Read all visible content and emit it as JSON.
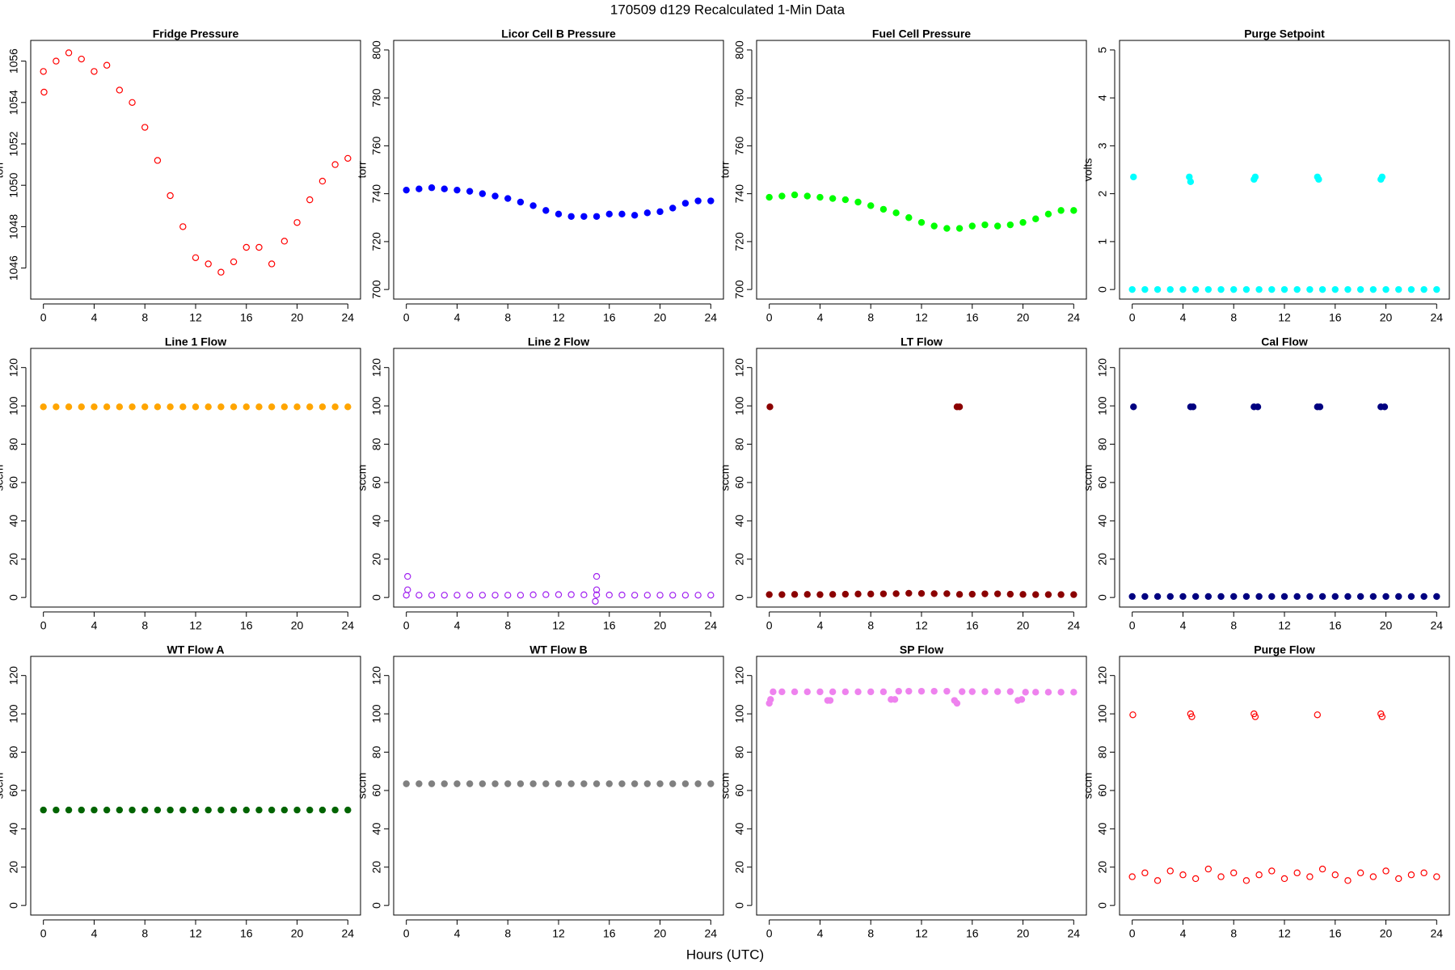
{
  "page_title": "170509   d129   Recalculated 1-Min Data",
  "x_label": "Hours (UTC)",
  "chart_data": [
    {
      "type": "scatter",
      "title": "Fridge Pressure",
      "ylabel": "torr",
      "color": "#ff0000",
      "marker": "open",
      "xlim": [
        -1,
        25
      ],
      "xticks": [
        0,
        4,
        8,
        12,
        16,
        20,
        24
      ],
      "ylim": [
        1044.5,
        1057
      ],
      "yticks": [
        1046,
        1048,
        1050,
        1052,
        1054,
        1056
      ],
      "x": [
        0,
        0.05,
        1,
        2,
        3,
        4,
        5,
        6,
        7,
        8,
        9,
        10,
        11,
        12,
        13,
        14,
        15,
        16,
        17,
        18,
        19,
        20,
        21,
        22,
        23,
        24
      ],
      "values": [
        1055.5,
        1054.5,
        1056.0,
        1056.4,
        1056.1,
        1055.5,
        1055.8,
        1054.6,
        1054.0,
        1052.8,
        1051.2,
        1049.5,
        1048.0,
        1046.5,
        1046.2,
        1045.8,
        1046.3,
        1047.0,
        1047.0,
        1046.2,
        1047.3,
        1048.2,
        1049.3,
        1050.2,
        1051.0,
        1051.3
      ]
    },
    {
      "type": "scatter",
      "title": "Licor Cell B Pressure",
      "ylabel": "torr",
      "color": "#0000ff",
      "marker": "filled",
      "xlim": [
        -1,
        25
      ],
      "xticks": [
        0,
        4,
        8,
        12,
        16,
        20,
        24
      ],
      "ylim": [
        696,
        804
      ],
      "yticks": [
        700,
        720,
        740,
        760,
        780,
        800
      ],
      "x": [
        0,
        1,
        2,
        3,
        4,
        5,
        6,
        7,
        8,
        9,
        10,
        11,
        12,
        13,
        14,
        15,
        16,
        17,
        18,
        19,
        20,
        21,
        22,
        23,
        24
      ],
      "values": [
        741.5,
        742,
        742.5,
        742,
        741.5,
        741,
        740,
        739,
        738,
        736.5,
        735,
        733,
        731.5,
        730.5,
        730.5,
        730.5,
        731.5,
        731.5,
        731,
        732,
        732.5,
        734,
        736,
        737,
        737
      ]
    },
    {
      "type": "scatter",
      "title": "Fuel Cell Pressure",
      "ylabel": "torr",
      "color": "#00ff00",
      "marker": "filled",
      "xlim": [
        -1,
        25
      ],
      "xticks": [
        0,
        4,
        8,
        12,
        16,
        20,
        24
      ],
      "ylim": [
        696,
        804
      ],
      "yticks": [
        700,
        720,
        740,
        760,
        780,
        800
      ],
      "x": [
        0,
        1,
        2,
        3,
        4,
        5,
        6,
        7,
        8,
        9,
        10,
        11,
        12,
        13,
        14,
        15,
        16,
        17,
        18,
        19,
        20,
        21,
        22,
        23,
        24
      ],
      "values": [
        738.5,
        739,
        739.5,
        739,
        738.5,
        738,
        737.5,
        736.5,
        735,
        733.5,
        732,
        730,
        728,
        726.5,
        725.5,
        725.5,
        726.5,
        727,
        726.5,
        727,
        728,
        729.5,
        731.5,
        733,
        733
      ]
    },
    {
      "type": "scatter",
      "title": "Purge Setpoint",
      "ylabel": "volts",
      "color": "#00ffff",
      "marker": "filled",
      "xlim": [
        -1,
        25
      ],
      "xticks": [
        0,
        4,
        8,
        12,
        16,
        20,
        24
      ],
      "ylim": [
        -0.2,
        5.2
      ],
      "yticks": [
        0,
        1,
        2,
        3,
        4,
        5
      ],
      "x": [
        0,
        1,
        2,
        3,
        4,
        5,
        6,
        7,
        8,
        9,
        10,
        11,
        12,
        13,
        14,
        15,
        16,
        17,
        18,
        19,
        20,
        21,
        22,
        23,
        24,
        0.1,
        4.5,
        4.6,
        9.6,
        9.7,
        14.6,
        14.7,
        19.6,
        19.7
      ],
      "values": [
        0,
        0,
        0,
        0,
        0,
        0,
        0,
        0,
        0,
        0,
        0,
        0,
        0,
        0,
        0,
        0,
        0,
        0,
        0,
        0,
        0,
        0,
        0,
        0,
        0,
        2.35,
        2.35,
        2.25,
        2.3,
        2.35,
        2.35,
        2.3,
        2.3,
        2.35
      ]
    },
    {
      "type": "scatter",
      "title": "Line 1 Flow",
      "ylabel": "sccm",
      "color": "#ffa500",
      "marker": "filled",
      "xlim": [
        -1,
        25
      ],
      "xticks": [
        0,
        4,
        8,
        12,
        16,
        20,
        24
      ],
      "ylim": [
        -5,
        130
      ],
      "yticks": [
        0,
        20,
        40,
        60,
        80,
        100,
        120
      ],
      "x": [
        0,
        1,
        2,
        3,
        4,
        5,
        6,
        7,
        8,
        9,
        10,
        11,
        12,
        13,
        14,
        15,
        16,
        17,
        18,
        19,
        20,
        21,
        22,
        23,
        24
      ],
      "values": [
        99.5,
        99.5,
        99.5,
        99.5,
        99.5,
        99.5,
        99.5,
        99.5,
        99.5,
        99.5,
        99.5,
        99.5,
        99.5,
        99.5,
        99.5,
        99.5,
        99.5,
        99.5,
        99.5,
        99.5,
        99.5,
        99.5,
        99.5,
        99.5,
        99.5
      ]
    },
    {
      "type": "scatter",
      "title": "Line 2 Flow",
      "ylabel": "sccm",
      "color": "#a020f0",
      "marker": "open",
      "xlim": [
        -1,
        25
      ],
      "xticks": [
        0,
        4,
        8,
        12,
        16,
        20,
        24
      ],
      "ylim": [
        -5,
        130
      ],
      "yticks": [
        0,
        20,
        40,
        60,
        80,
        100,
        120
      ],
      "x": [
        0,
        1,
        2,
        3,
        4,
        5,
        6,
        7,
        8,
        9,
        10,
        11,
        12,
        13,
        14,
        15,
        16,
        17,
        18,
        19,
        20,
        21,
        22,
        23,
        24,
        0.1,
        0.1,
        15,
        15,
        14.9
      ],
      "values": [
        1.2,
        1.2,
        1.2,
        1.2,
        1.2,
        1.2,
        1.2,
        1.2,
        1.2,
        1.2,
        1.4,
        1.5,
        1.5,
        1.5,
        1.4,
        1.4,
        1.3,
        1.3,
        1.2,
        1.2,
        1.2,
        1.2,
        1.2,
        1.2,
        1.2,
        11,
        4,
        11,
        4,
        -2
      ]
    },
    {
      "type": "scatter",
      "title": "LT Flow",
      "ylabel": "sccm",
      "color": "#8b0000",
      "marker": "filled",
      "xlim": [
        -1,
        25
      ],
      "xticks": [
        0,
        4,
        8,
        12,
        16,
        20,
        24
      ],
      "ylim": [
        -5,
        130
      ],
      "yticks": [
        0,
        20,
        40,
        60,
        80,
        100,
        120
      ],
      "x": [
        0,
        1,
        2,
        3,
        4,
        5,
        6,
        7,
        8,
        9,
        10,
        11,
        12,
        13,
        14,
        15,
        16,
        17,
        18,
        19,
        20,
        21,
        22,
        23,
        24,
        0.05,
        14.8,
        15
      ],
      "values": [
        1.5,
        1.5,
        1.6,
        1.6,
        1.5,
        1.6,
        1.7,
        1.8,
        1.8,
        1.9,
        2.0,
        2.2,
        2.1,
        2.0,
        2.0,
        1.6,
        1.7,
        1.9,
        1.9,
        1.7,
        1.6,
        1.5,
        1.5,
        1.5,
        1.5,
        99.5,
        99.5,
        99.5
      ]
    },
    {
      "type": "scatter",
      "title": "Cal Flow",
      "ylabel": "sccm",
      "color": "#000080",
      "marker": "filled",
      "xlim": [
        -1,
        25
      ],
      "xticks": [
        0,
        4,
        8,
        12,
        16,
        20,
        24
      ],
      "ylim": [
        -5,
        130
      ],
      "yticks": [
        0,
        20,
        40,
        60,
        80,
        100,
        120
      ],
      "x": [
        0,
        1,
        2,
        3,
        4,
        5,
        6,
        7,
        8,
        9,
        10,
        11,
        12,
        13,
        14,
        15,
        16,
        17,
        18,
        19,
        20,
        21,
        22,
        23,
        24,
        0.1,
        4.6,
        4.8,
        9.6,
        9.9,
        14.6,
        14.8,
        19.6,
        19.9
      ],
      "values": [
        0.5,
        0.5,
        0.5,
        0.5,
        0.5,
        0.5,
        0.5,
        0.5,
        0.5,
        0.5,
        0.5,
        0.5,
        0.5,
        0.5,
        0.5,
        0.5,
        0.5,
        0.5,
        0.5,
        0.5,
        0.5,
        0.5,
        0.5,
        0.5,
        0.5,
        99.5,
        99.5,
        99.5,
        99.5,
        99.5,
        99.5,
        99.5,
        99.5,
        99.5
      ]
    },
    {
      "type": "scatter",
      "title": "WT Flow A",
      "ylabel": "sccm",
      "color": "#006400",
      "marker": "filled",
      "xlim": [
        -1,
        25
      ],
      "xticks": [
        0,
        4,
        8,
        12,
        16,
        20,
        24
      ],
      "ylim": [
        -5,
        130
      ],
      "yticks": [
        0,
        20,
        40,
        60,
        80,
        100,
        120
      ],
      "x": [
        0,
        1,
        2,
        3,
        4,
        5,
        6,
        7,
        8,
        9,
        10,
        11,
        12,
        13,
        14,
        15,
        16,
        17,
        18,
        19,
        20,
        21,
        22,
        23,
        24
      ],
      "values": [
        49.8,
        49.8,
        49.8,
        49.8,
        49.8,
        49.8,
        49.8,
        49.8,
        49.8,
        49.8,
        49.8,
        49.8,
        49.8,
        49.8,
        49.8,
        49.8,
        49.8,
        49.8,
        49.8,
        49.8,
        49.8,
        49.8,
        49.8,
        49.8,
        49.8
      ]
    },
    {
      "type": "scatter",
      "title": "WT Flow B",
      "ylabel": "sccm",
      "color": "#808080",
      "marker": "filled",
      "xlim": [
        -1,
        25
      ],
      "xticks": [
        0,
        4,
        8,
        12,
        16,
        20,
        24
      ],
      "ylim": [
        -5,
        130
      ],
      "yticks": [
        0,
        20,
        40,
        60,
        80,
        100,
        120
      ],
      "x": [
        0,
        1,
        2,
        3,
        4,
        5,
        6,
        7,
        8,
        9,
        10,
        11,
        12,
        13,
        14,
        15,
        16,
        17,
        18,
        19,
        20,
        21,
        22,
        23,
        24
      ],
      "values": [
        63.5,
        63.5,
        63.5,
        63.5,
        63.5,
        63.5,
        63.5,
        63.5,
        63.5,
        63.5,
        63.5,
        63.5,
        63.5,
        63.5,
        63.5,
        63.5,
        63.5,
        63.5,
        63.5,
        63.5,
        63.5,
        63.5,
        63.5,
        63.5,
        63.5
      ]
    },
    {
      "type": "scatter",
      "title": "SP Flow",
      "ylabel": "sccm",
      "color": "#ee82ee",
      "marker": "filled",
      "xlim": [
        -1,
        25
      ],
      "xticks": [
        0,
        4,
        8,
        12,
        16,
        20,
        24
      ],
      "ylim": [
        -5,
        130
      ],
      "yticks": [
        0,
        20,
        40,
        60,
        80,
        100,
        120
      ],
      "x": [
        0.3,
        1,
        2,
        3,
        4,
        5,
        6,
        7,
        8,
        9,
        10.2,
        11,
        12,
        13,
        14,
        15.2,
        16,
        17,
        18,
        19,
        20.2,
        21,
        22,
        23,
        24,
        0,
        0.1,
        4.6,
        4.8,
        9.6,
        9.9,
        14.6,
        14.8,
        19.6,
        19.9
      ],
      "values": [
        111.5,
        111.5,
        111.5,
        111.5,
        111.5,
        111.5,
        111.5,
        111.5,
        111.5,
        111.5,
        111.8,
        111.8,
        111.8,
        111.8,
        111.8,
        111.6,
        111.6,
        111.6,
        111.6,
        111.6,
        111.3,
        111.3,
        111.3,
        111.3,
        111.3,
        105.5,
        107.5,
        107,
        107,
        107.5,
        107.5,
        107,
        105.5,
        107,
        107.5
      ]
    },
    {
      "type": "scatter",
      "title": "Purge Flow",
      "ylabel": "sccm",
      "color": "#ff0000",
      "marker": "open",
      "xlim": [
        -1,
        25
      ],
      "xticks": [
        0,
        4,
        8,
        12,
        16,
        20,
        24
      ],
      "ylim": [
        -5,
        130
      ],
      "yticks": [
        0,
        20,
        40,
        60,
        80,
        100,
        120
      ],
      "x": [
        0,
        1,
        2,
        3,
        4,
        5,
        6,
        7,
        8,
        9,
        10,
        11,
        12,
        13,
        14,
        15,
        16,
        17,
        18,
        19,
        20,
        21,
        22,
        23,
        24,
        0.05,
        4.6,
        4.7,
        9.6,
        9.7,
        14.6,
        19.6,
        19.7
      ],
      "values": [
        15,
        17,
        13,
        18,
        16,
        14,
        19,
        15,
        17,
        13,
        16,
        18,
        14,
        17,
        15,
        19,
        16,
        13,
        17,
        15,
        18,
        14,
        16,
        17,
        15,
        99.5,
        100,
        98.5,
        100,
        98.5,
        99.5,
        100,
        98.5
      ]
    }
  ]
}
